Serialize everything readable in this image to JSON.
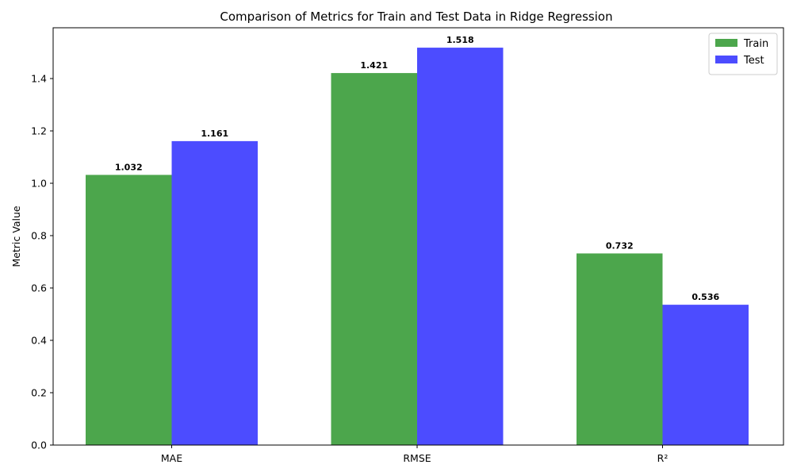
{
  "chart_data": {
    "type": "bar",
    "title": "Comparison of Metrics for Train and Test Data in Ridge Regression",
    "xlabel": "",
    "ylabel": "Metric Value",
    "categories": [
      "MAE",
      "RMSE",
      "R²"
    ],
    "series": [
      {
        "name": "Train",
        "values": [
          1.032,
          1.421,
          0.732
        ],
        "labels": [
          "1.032",
          "1.421",
          "0.732"
        ],
        "color": "#4ca64c"
      },
      {
        "name": "Test",
        "values": [
          1.161,
          1.518,
          0.536
        ],
        "labels": [
          "1.161",
          "1.518",
          "0.536"
        ],
        "color": "#4c4cff"
      }
    ],
    "ylim": [
      0,
      1.594
    ],
    "yticks": [
      0.0,
      0.2,
      0.4,
      0.6,
      0.8,
      1.0,
      1.2,
      1.4
    ],
    "ytick_labels": [
      "0.0",
      "0.2",
      "0.4",
      "0.6",
      "0.8",
      "1.0",
      "1.2",
      "1.4"
    ],
    "grid": false,
    "legend_position": "top-right"
  }
}
